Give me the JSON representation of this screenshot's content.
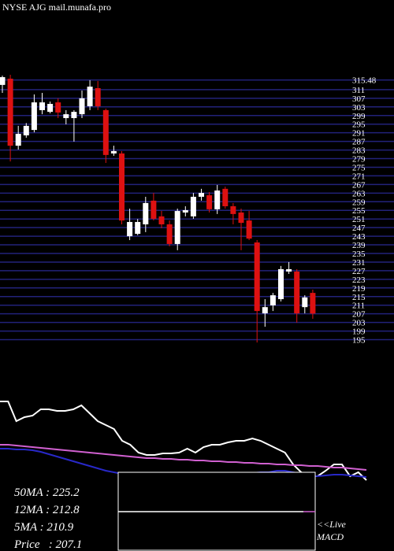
{
  "chart_data": [
    {
      "type": "candlestick",
      "title": "NYSE AJG mail.munafa.pro",
      "open": [
        313.2,
        316.1,
        285.0,
        289.8,
        292.3,
        301.5,
        300.7,
        305.1,
        297.8,
        297.8,
        299.6,
        303.3,
        311.7,
        301.5,
        281.4,
        281.4,
        243.0,
        244.1,
        248.5,
        259.5,
        252.2,
        248.5,
        239.4,
        254.0,
        252.2,
        261.3,
        262.0,
        255.5,
        265.0,
        256.9,
        254.0,
        250.3,
        240.1,
        207.2,
        210.9,
        213.8,
        226.6,
        226.6,
        210.1,
        216.7
      ],
      "high": [
        317.5,
        317.9,
        294.2,
        295.5,
        308.8,
        309.5,
        305.5,
        307.0,
        301.5,
        301.5,
        310.6,
        315.4,
        315.0,
        302.2,
        285.0,
        282.5,
        255.8,
        251.0,
        261.3,
        263.1,
        254.7,
        250.3,
        255.8,
        256.9,
        263.1,
        265.0,
        263.5,
        266.8,
        266.0,
        258.4,
        255.8,
        254.7,
        241.2,
        213.8,
        216.7,
        229.2,
        231.0,
        227.7,
        215.6,
        218.2
      ],
      "low": [
        309.5,
        277.7,
        283.2,
        288.7,
        291.2,
        299.6,
        300.0,
        297.8,
        294.9,
        286.9,
        297.8,
        301.5,
        301.5,
        277.0,
        280.3,
        248.5,
        241.2,
        243.5,
        244.9,
        250.3,
        246.7,
        238.3,
        236.5,
        252.2,
        251.1,
        259.5,
        254.0,
        253.3,
        255.8,
        248.5,
        236.5,
        241.2,
        193.7,
        201.0,
        208.3,
        212.7,
        225.5,
        202.9,
        207.2,
        204.7
      ],
      "close": [
        316.8,
        285.0,
        290.5,
        294.2,
        305.1,
        305.1,
        304.4,
        300.4,
        299.6,
        300.7,
        307.0,
        312.4,
        303.3,
        280.7,
        282.5,
        250.3,
        249.6,
        249.6,
        258.4,
        251.1,
        248.5,
        239.4,
        254.7,
        255.1,
        261.3,
        263.1,
        255.5,
        264.2,
        256.9,
        253.3,
        249.2,
        241.9,
        208.3,
        210.1,
        215.6,
        227.7,
        227.7,
        207.2,
        214.6,
        207.1
      ],
      "up_color": "#ffffff",
      "down_color": "#dd1111",
      "grid_color": "#22227a",
      "ylim": [
        193,
        319
      ],
      "yticks": [
        315.48,
        311,
        307,
        303,
        299,
        295,
        291,
        287,
        283,
        279,
        275,
        271,
        267,
        263,
        259,
        255,
        251,
        247,
        243,
        239,
        235,
        231,
        227,
        223,
        219,
        215,
        211,
        207,
        203,
        199,
        195
      ]
    },
    {
      "type": "line",
      "ylim": [
        0,
        120
      ],
      "series": [
        {
          "color": "#ffffff",
          "values": [
            110,
            110,
            85,
            90,
            92,
            100,
            100,
            98,
            98,
            100,
            105,
            95,
            85,
            80,
            75,
            60,
            55,
            45,
            42,
            42,
            44,
            44,
            45,
            50,
            45,
            52,
            55,
            55,
            58,
            60,
            60,
            63,
            60,
            55,
            50,
            45,
            30,
            20,
            15,
            15,
            22,
            30,
            30,
            15,
            20,
            10
          ]
        },
        {
          "color": "#d060d0",
          "values": [
            55,
            55,
            54,
            53,
            52,
            51,
            50,
            49,
            48,
            47,
            46,
            45,
            44,
            43,
            42,
            41,
            40,
            39,
            38,
            38,
            37,
            37,
            36,
            36,
            35,
            35,
            34,
            34,
            33,
            33,
            32,
            32,
            31,
            31,
            30,
            30,
            29,
            29,
            28,
            28,
            27,
            26,
            26,
            25,
            24,
            23
          ]
        },
        {
          "color": "#2828c8",
          "values": [
            50,
            50,
            49,
            49,
            48,
            46,
            43,
            40,
            37,
            34,
            31,
            28,
            25,
            22,
            20,
            18,
            17,
            16,
            15,
            14,
            13,
            12,
            12,
            12,
            13,
            14,
            15,
            16,
            17,
            18,
            18,
            19,
            20,
            20,
            22,
            22,
            20,
            18,
            16,
            15,
            16,
            17,
            17,
            16,
            15,
            14
          ]
        }
      ]
    }
  ],
  "stats": [
    "50MA : 225.2",
    "12MA : 212.8",
    "5MA : 210.9",
    "Price   : 207.1"
  ],
  "macd_box": {
    "live": "<<Live",
    "label": "MACD"
  }
}
